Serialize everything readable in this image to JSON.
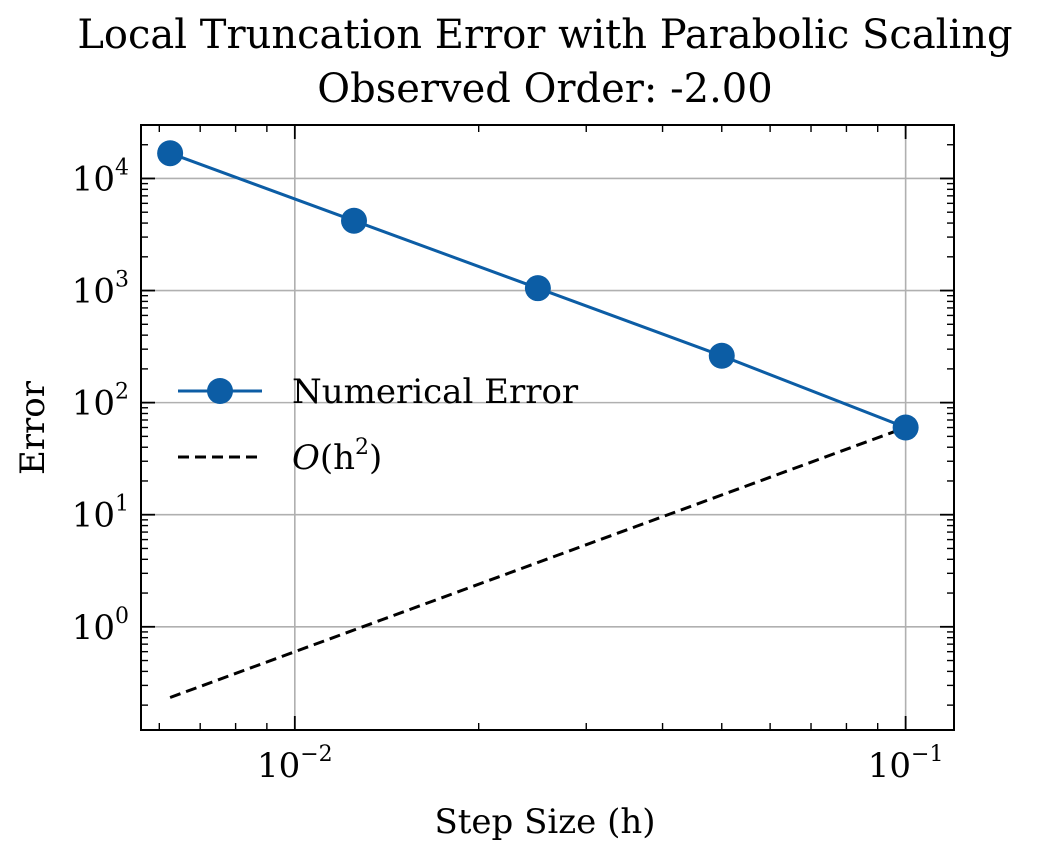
{
  "chart_data": {
    "type": "line",
    "title": "Local Truncation Error with Parabolic Scaling",
    "subtitle": "Observed Order: -2.00",
    "xlabel": "Step Size (h)",
    "ylabel": "Error",
    "xscale": "log",
    "yscale": "log",
    "xlim": [
      0.0056,
      0.12
    ],
    "ylim": [
      0.12,
      30000
    ],
    "grid": true,
    "legend_position": "center-left",
    "x_ticks": [
      {
        "value": 0.01,
        "base": "10",
        "exp": "−2"
      },
      {
        "value": 0.1,
        "base": "10",
        "exp": "−1"
      }
    ],
    "y_ticks": [
      {
        "value": 1,
        "base": "10",
        "exp": "0"
      },
      {
        "value": 10,
        "base": "10",
        "exp": "1"
      },
      {
        "value": 100,
        "base": "10",
        "exp": "2"
      },
      {
        "value": 1000,
        "base": "10",
        "exp": "3"
      },
      {
        "value": 10000,
        "base": "10",
        "exp": "4"
      }
    ],
    "series": [
      {
        "name": "Numerical Error",
        "style": "solid-markers",
        "color": "#0C5DA5",
        "x": [
          0.00625,
          0.0125,
          0.025,
          0.05,
          0.1
        ],
        "y": [
          16800,
          4200,
          1050,
          262,
          60
        ]
      },
      {
        "name": "O(h²)",
        "legend_main": "O",
        "legend_paren_open": "(h",
        "legend_sup": "2",
        "legend_paren_close": ")",
        "style": "dashed",
        "color": "#000000",
        "x": [
          0.00625,
          0.1
        ],
        "y": [
          0.234,
          60
        ]
      }
    ]
  }
}
